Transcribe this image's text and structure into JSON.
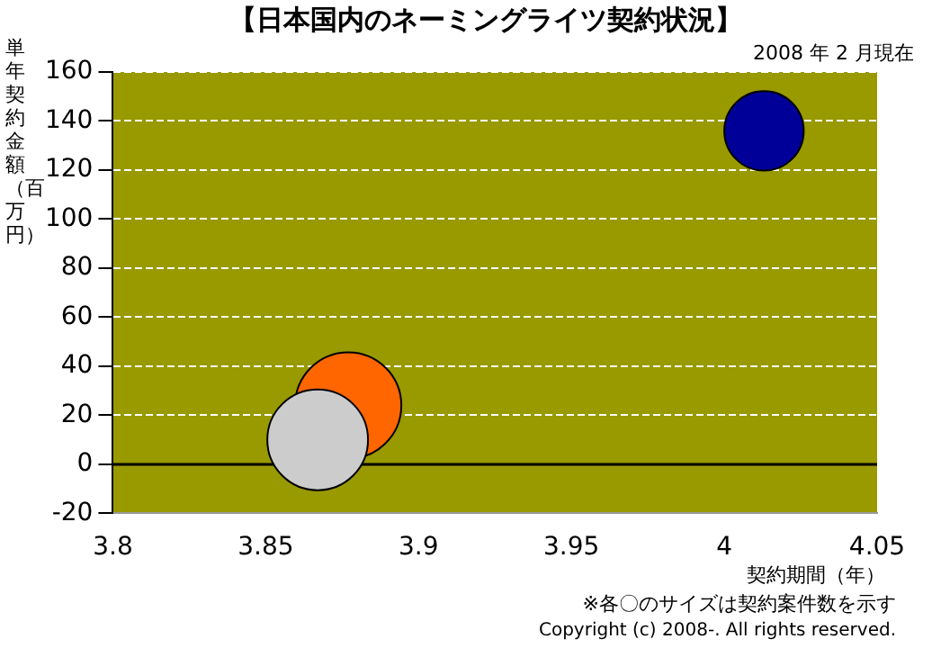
{
  "chart_data": {
    "type": "bubble",
    "title": "【日本国内のネーミングライツ契約状況】",
    "subtitle": "2008 年 2 月現在",
    "xlabel": "契約期間（年）",
    "ylabel": "単年契約金額（百万円）",
    "annotations": [
      "※各〇のサイズは契約案件数を示す",
      "Copyright (c) 2008-. All rights reserved."
    ],
    "series": [
      {
        "color": "#cccccc",
        "x": [
          3.867
        ],
        "values": [
          10
        ],
        "sizes": [
          0.9
        ]
      },
      {
        "color": "#ff6600",
        "x": [
          3.877
        ],
        "values": [
          24
        ],
        "sizes": [
          1
        ]
      },
      {
        "color": "#000099",
        "x": [
          4.013
        ],
        "values": [
          136
        ],
        "sizes": [
          0.56
        ]
      }
    ],
    "xlim": [
      3.8,
      4.05
    ],
    "xticks": [
      3.8,
      3.85,
      3.9,
      3.95,
      4,
      4.05
    ],
    "ylim": [
      -20,
      160
    ],
    "yticks": [
      -20,
      0,
      20,
      40,
      60,
      80,
      100,
      120,
      140,
      160
    ],
    "ref_lines": [
      {
        "axis": "y",
        "value": 0,
        "color": "#000000"
      }
    ],
    "grid": "y",
    "legend": false
  }
}
